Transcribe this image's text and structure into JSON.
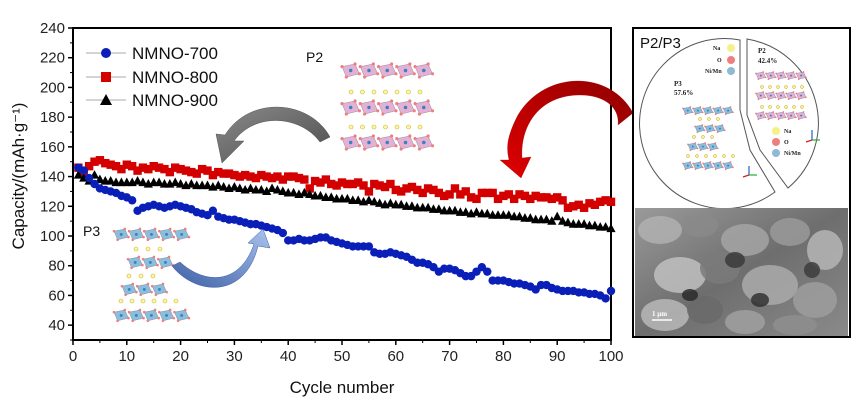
{
  "chart_data": {
    "type": "scatter",
    "title": "",
    "xlabel": "Cycle number",
    "ylabel": "Capacity/(mAh·g⁻¹)",
    "xlim": [
      0,
      100
    ],
    "ylim": [
      30,
      240
    ],
    "xticks": [
      0,
      10,
      20,
      30,
      40,
      50,
      60,
      70,
      80,
      90,
      100
    ],
    "yticks": [
      40,
      60,
      80,
      100,
      120,
      140,
      160,
      180,
      200,
      220,
      240
    ],
    "grid": false,
    "legend_position": "top-left",
    "series": [
      {
        "name": "NMNO-700",
        "color": "#0a1fb8",
        "marker": "circle",
        "x": [
          1,
          2,
          3,
          4,
          5,
          6,
          7,
          8,
          9,
          10,
          11,
          12,
          13,
          14,
          15,
          16,
          17,
          18,
          19,
          20,
          21,
          22,
          23,
          24,
          25,
          26,
          27,
          28,
          29,
          30,
          31,
          32,
          33,
          34,
          35,
          36,
          37,
          38,
          39,
          40,
          41,
          42,
          43,
          44,
          45,
          46,
          47,
          48,
          49,
          50,
          51,
          52,
          53,
          54,
          55,
          56,
          57,
          58,
          59,
          60,
          61,
          62,
          63,
          64,
          65,
          66,
          67,
          68,
          69,
          70,
          71,
          72,
          73,
          74,
          75,
          76,
          77,
          78,
          79,
          80,
          81,
          82,
          83,
          84,
          85,
          86,
          87,
          88,
          89,
          90,
          91,
          92,
          93,
          94,
          95,
          96,
          97,
          98,
          99,
          100
        ],
        "values": [
          146,
          144,
          139,
          135,
          132,
          131,
          130,
          129,
          127,
          126,
          124,
          117,
          119,
          120,
          121,
          120,
          119,
          120,
          121,
          120,
          119,
          118,
          116,
          115,
          114,
          117,
          113,
          112,
          111,
          111,
          110,
          109,
          108,
          108,
          107,
          106,
          105,
          104,
          102,
          97,
          97,
          98,
          97,
          97,
          98,
          99,
          99,
          97,
          96,
          95,
          94,
          93,
          93,
          93,
          93,
          89,
          88,
          88,
          89,
          88,
          87,
          86,
          84,
          82,
          82,
          81,
          79,
          76,
          78,
          78,
          77,
          75,
          73,
          73,
          76,
          79,
          76,
          70,
          70,
          70,
          69,
          68,
          68,
          67,
          66,
          64,
          67,
          67,
          65,
          64,
          63,
          63,
          63,
          62,
          62,
          61,
          61,
          60,
          58,
          63
        ]
      },
      {
        "name": "NMNO-800",
        "color": "#d40000",
        "marker": "square",
        "x": [
          1,
          2,
          3,
          4,
          5,
          6,
          7,
          8,
          9,
          10,
          11,
          12,
          13,
          14,
          15,
          16,
          17,
          18,
          19,
          20,
          21,
          22,
          23,
          24,
          25,
          26,
          27,
          28,
          29,
          30,
          31,
          32,
          33,
          34,
          35,
          36,
          37,
          38,
          39,
          40,
          41,
          42,
          43,
          44,
          45,
          46,
          47,
          48,
          49,
          50,
          51,
          52,
          53,
          54,
          55,
          56,
          57,
          58,
          59,
          60,
          61,
          62,
          63,
          64,
          65,
          66,
          67,
          68,
          69,
          70,
          71,
          72,
          73,
          74,
          75,
          76,
          77,
          78,
          79,
          80,
          81,
          82,
          83,
          84,
          85,
          86,
          87,
          88,
          89,
          90,
          91,
          92,
          93,
          94,
          95,
          96,
          97,
          98,
          99,
          100
        ],
        "values": [
          146,
          143,
          147,
          150,
          151,
          149,
          148,
          147,
          145,
          148,
          147,
          144,
          146,
          145,
          147,
          146,
          145,
          143,
          146,
          145,
          144,
          143,
          142,
          145,
          144,
          141,
          143,
          142,
          142,
          141,
          140,
          141,
          140,
          139,
          141,
          140,
          139,
          140,
          138,
          140,
          140,
          139,
          138,
          132,
          137,
          136,
          138,
          135,
          134,
          136,
          135,
          135,
          136,
          134,
          130,
          135,
          134,
          133,
          135,
          131,
          130,
          132,
          133,
          131,
          129,
          132,
          131,
          129,
          127,
          128,
          132,
          128,
          130,
          126,
          125,
          129,
          129,
          129,
          125,
          127,
          128,
          125,
          128,
          127,
          125,
          127,
          126,
          126,
          125,
          126,
          124,
          119,
          120,
          121,
          119,
          122,
          121,
          123,
          124,
          123
        ]
      },
      {
        "name": "NMNO-900",
        "color": "#000000",
        "marker": "triangle",
        "x": [
          1,
          2,
          3,
          4,
          5,
          6,
          7,
          8,
          9,
          10,
          11,
          12,
          13,
          14,
          15,
          16,
          17,
          18,
          19,
          20,
          21,
          22,
          23,
          24,
          25,
          26,
          27,
          28,
          29,
          30,
          31,
          32,
          33,
          34,
          35,
          36,
          37,
          38,
          39,
          40,
          41,
          42,
          43,
          44,
          45,
          46,
          47,
          48,
          49,
          50,
          51,
          52,
          53,
          54,
          55,
          56,
          57,
          58,
          59,
          60,
          61,
          62,
          63,
          64,
          65,
          66,
          67,
          68,
          69,
          70,
          71,
          72,
          73,
          74,
          75,
          76,
          77,
          78,
          79,
          80,
          81,
          82,
          83,
          84,
          85,
          86,
          87,
          88,
          89,
          90,
          91,
          92,
          93,
          94,
          95,
          96,
          97,
          98,
          99,
          100
        ],
        "values": [
          141,
          139,
          137,
          141,
          138,
          137,
          137,
          136,
          136,
          136,
          136,
          137,
          136,
          135,
          136,
          136,
          135,
          135,
          136,
          135,
          134,
          135,
          134,
          134,
          134,
          133,
          134,
          133,
          132,
          133,
          132,
          131,
          132,
          131,
          131,
          130,
          132,
          131,
          130,
          129,
          129,
          128,
          129,
          128,
          127,
          127,
          126,
          126,
          125,
          125,
          125,
          124,
          124,
          123,
          124,
          123,
          122,
          121,
          122,
          121,
          121,
          120,
          120,
          119,
          119,
          119,
          118,
          118,
          117,
          117,
          117,
          116,
          116,
          115,
          116,
          115,
          115,
          114,
          114,
          114,
          114,
          113,
          113,
          112,
          112,
          111,
          111,
          111,
          110,
          113,
          110,
          109,
          108,
          108,
          108,
          107,
          107,
          106,
          106,
          105
        ]
      }
    ],
    "annotations": [
      {
        "text": "P2",
        "type": "phase-label"
      },
      {
        "text": "P3",
        "type": "phase-label"
      }
    ]
  },
  "inset_panel": {
    "title": "P2/P3",
    "p3_label": "P3",
    "p3_percent": "57.6%",
    "p2_label": "P2",
    "p2_percent": "42.4%",
    "legend_na": "Na",
    "legend_o": "O",
    "legend_nimn": "Ni/Mn",
    "na_color": "#f6f08a",
    "o_color": "#ef7f7f",
    "nimn_color": "#8fb9d4",
    "sem_scale_bar": "1 μm"
  },
  "colors": {
    "p3_octahedra": "#7fb8d6",
    "p2_octahedra": "#e3a9cf",
    "gray_arrow": "#6a6a6a",
    "blue_arrow": "#6f93cf",
    "red_arrow": "#cc0000"
  }
}
